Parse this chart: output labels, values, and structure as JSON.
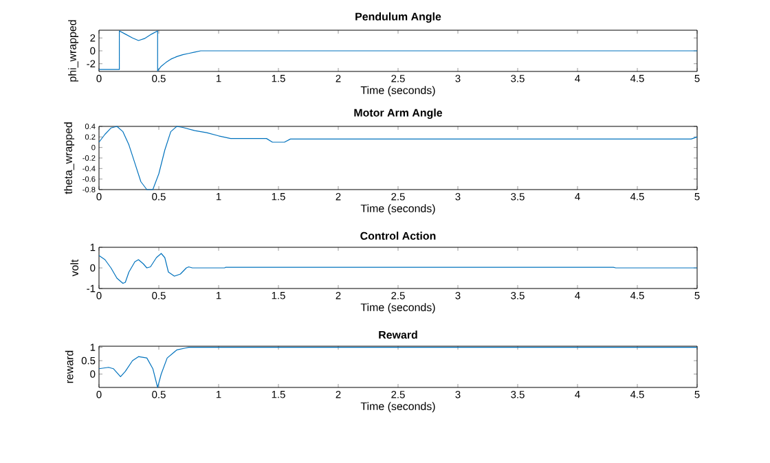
{
  "chart_data": [
    {
      "type": "line",
      "title": "Pendulum Angle",
      "xlabel": "Time (seconds)",
      "ylabel": "phi_wrapped",
      "color": "#0072bd",
      "x": [
        0,
        0.17,
        0.17,
        0.22,
        0.28,
        0.33,
        0.38,
        0.44,
        0.49,
        0.49,
        0.52,
        0.56,
        0.6,
        0.65,
        0.7,
        0.75,
        0.8,
        0.85,
        1,
        2,
        3,
        4,
        5
      ],
      "values": [
        -2.9,
        -2.9,
        3.1,
        2.6,
        2.0,
        1.6,
        1.9,
        2.6,
        3.1,
        -3.1,
        -2.4,
        -1.8,
        -1.3,
        -0.9,
        -0.6,
        -0.4,
        -0.2,
        0,
        0,
        0,
        0,
        0,
        0
      ],
      "xlim": [
        0,
        5
      ],
      "ylim": [
        -3.2,
        3.2
      ],
      "xticks": [
        0,
        0.5,
        1,
        1.5,
        2,
        2.5,
        3,
        3.5,
        4,
        4.5,
        5
      ],
      "yticks": [
        -2,
        0,
        2
      ]
    },
    {
      "type": "line",
      "title": "Motor Arm Angle",
      "xlabel": "Time (seconds)",
      "ylabel": "theta_wrapped",
      "color": "#0072bd",
      "x": [
        0,
        0.05,
        0.1,
        0.15,
        0.2,
        0.25,
        0.3,
        0.35,
        0.4,
        0.45,
        0.5,
        0.55,
        0.6,
        0.65,
        0.7,
        0.8,
        0.9,
        1.0,
        1.1,
        1.4,
        1.45,
        1.55,
        1.6,
        2,
        3,
        4,
        4.95,
        5
      ],
      "values": [
        0.1,
        0.25,
        0.37,
        0.4,
        0.3,
        0.05,
        -0.3,
        -0.65,
        -0.8,
        -0.8,
        -0.5,
        -0.05,
        0.3,
        0.4,
        0.38,
        0.32,
        0.28,
        0.22,
        0.17,
        0.17,
        0.1,
        0.1,
        0.16,
        0.16,
        0.16,
        0.16,
        0.16,
        0.2
      ],
      "xlim": [
        0,
        5
      ],
      "ylim": [
        -0.8,
        0.4
      ],
      "xticks": [
        0,
        0.5,
        1,
        1.5,
        2,
        2.5,
        3,
        3.5,
        4,
        4.5,
        5
      ],
      "yticks": [
        -0.8,
        -0.6,
        -0.4,
        -0.2,
        0,
        0.2,
        0.4
      ]
    },
    {
      "type": "line",
      "title": "Control Action",
      "xlabel": "Time (seconds)",
      "ylabel": "volt",
      "color": "#0072bd",
      "x": [
        0,
        0.05,
        0.1,
        0.15,
        0.2,
        0.22,
        0.25,
        0.3,
        0.33,
        0.37,
        0.4,
        0.43,
        0.48,
        0.52,
        0.55,
        0.58,
        0.63,
        0.68,
        0.73,
        0.75,
        0.78,
        1.05,
        1.06,
        4.3,
        4.32,
        5
      ],
      "values": [
        0.6,
        0.4,
        0,
        -0.5,
        -0.75,
        -0.7,
        -0.2,
        0.3,
        0.4,
        0.2,
        0,
        0.05,
        0.5,
        0.7,
        0.5,
        -0.2,
        -0.4,
        -0.3,
        0,
        0.05,
        0,
        0,
        0.03,
        0.03,
        0,
        0
      ],
      "xlim": [
        0,
        5
      ],
      "ylim": [
        -1,
        1
      ],
      "xticks": [
        0,
        0.5,
        1,
        1.5,
        2,
        2.5,
        3,
        3.5,
        4,
        4.5,
        5
      ],
      "yticks": [
        -1,
        0,
        1
      ]
    },
    {
      "type": "line",
      "title": "Reward",
      "xlabel": "Time (seconds)",
      "ylabel": "reward",
      "color": "#0072bd",
      "x": [
        0,
        0.08,
        0.12,
        0.18,
        0.22,
        0.28,
        0.33,
        0.4,
        0.45,
        0.49,
        0.52,
        0.57,
        0.65,
        0.72,
        0.75,
        1,
        2,
        3,
        4,
        5
      ],
      "values": [
        0.2,
        0.25,
        0.2,
        -0.1,
        0.1,
        0.5,
        0.65,
        0.6,
        0.2,
        -0.5,
        0,
        0.6,
        0.9,
        0.97,
        1,
        1,
        1,
        1,
        1,
        1
      ],
      "xlim": [
        0,
        5
      ],
      "ylim": [
        -0.5,
        1.04
      ],
      "xticks": [
        0,
        0.5,
        1,
        1.5,
        2,
        2.5,
        3,
        3.5,
        4,
        4.5,
        5
      ],
      "yticks": [
        0,
        0.5,
        1
      ]
    }
  ]
}
